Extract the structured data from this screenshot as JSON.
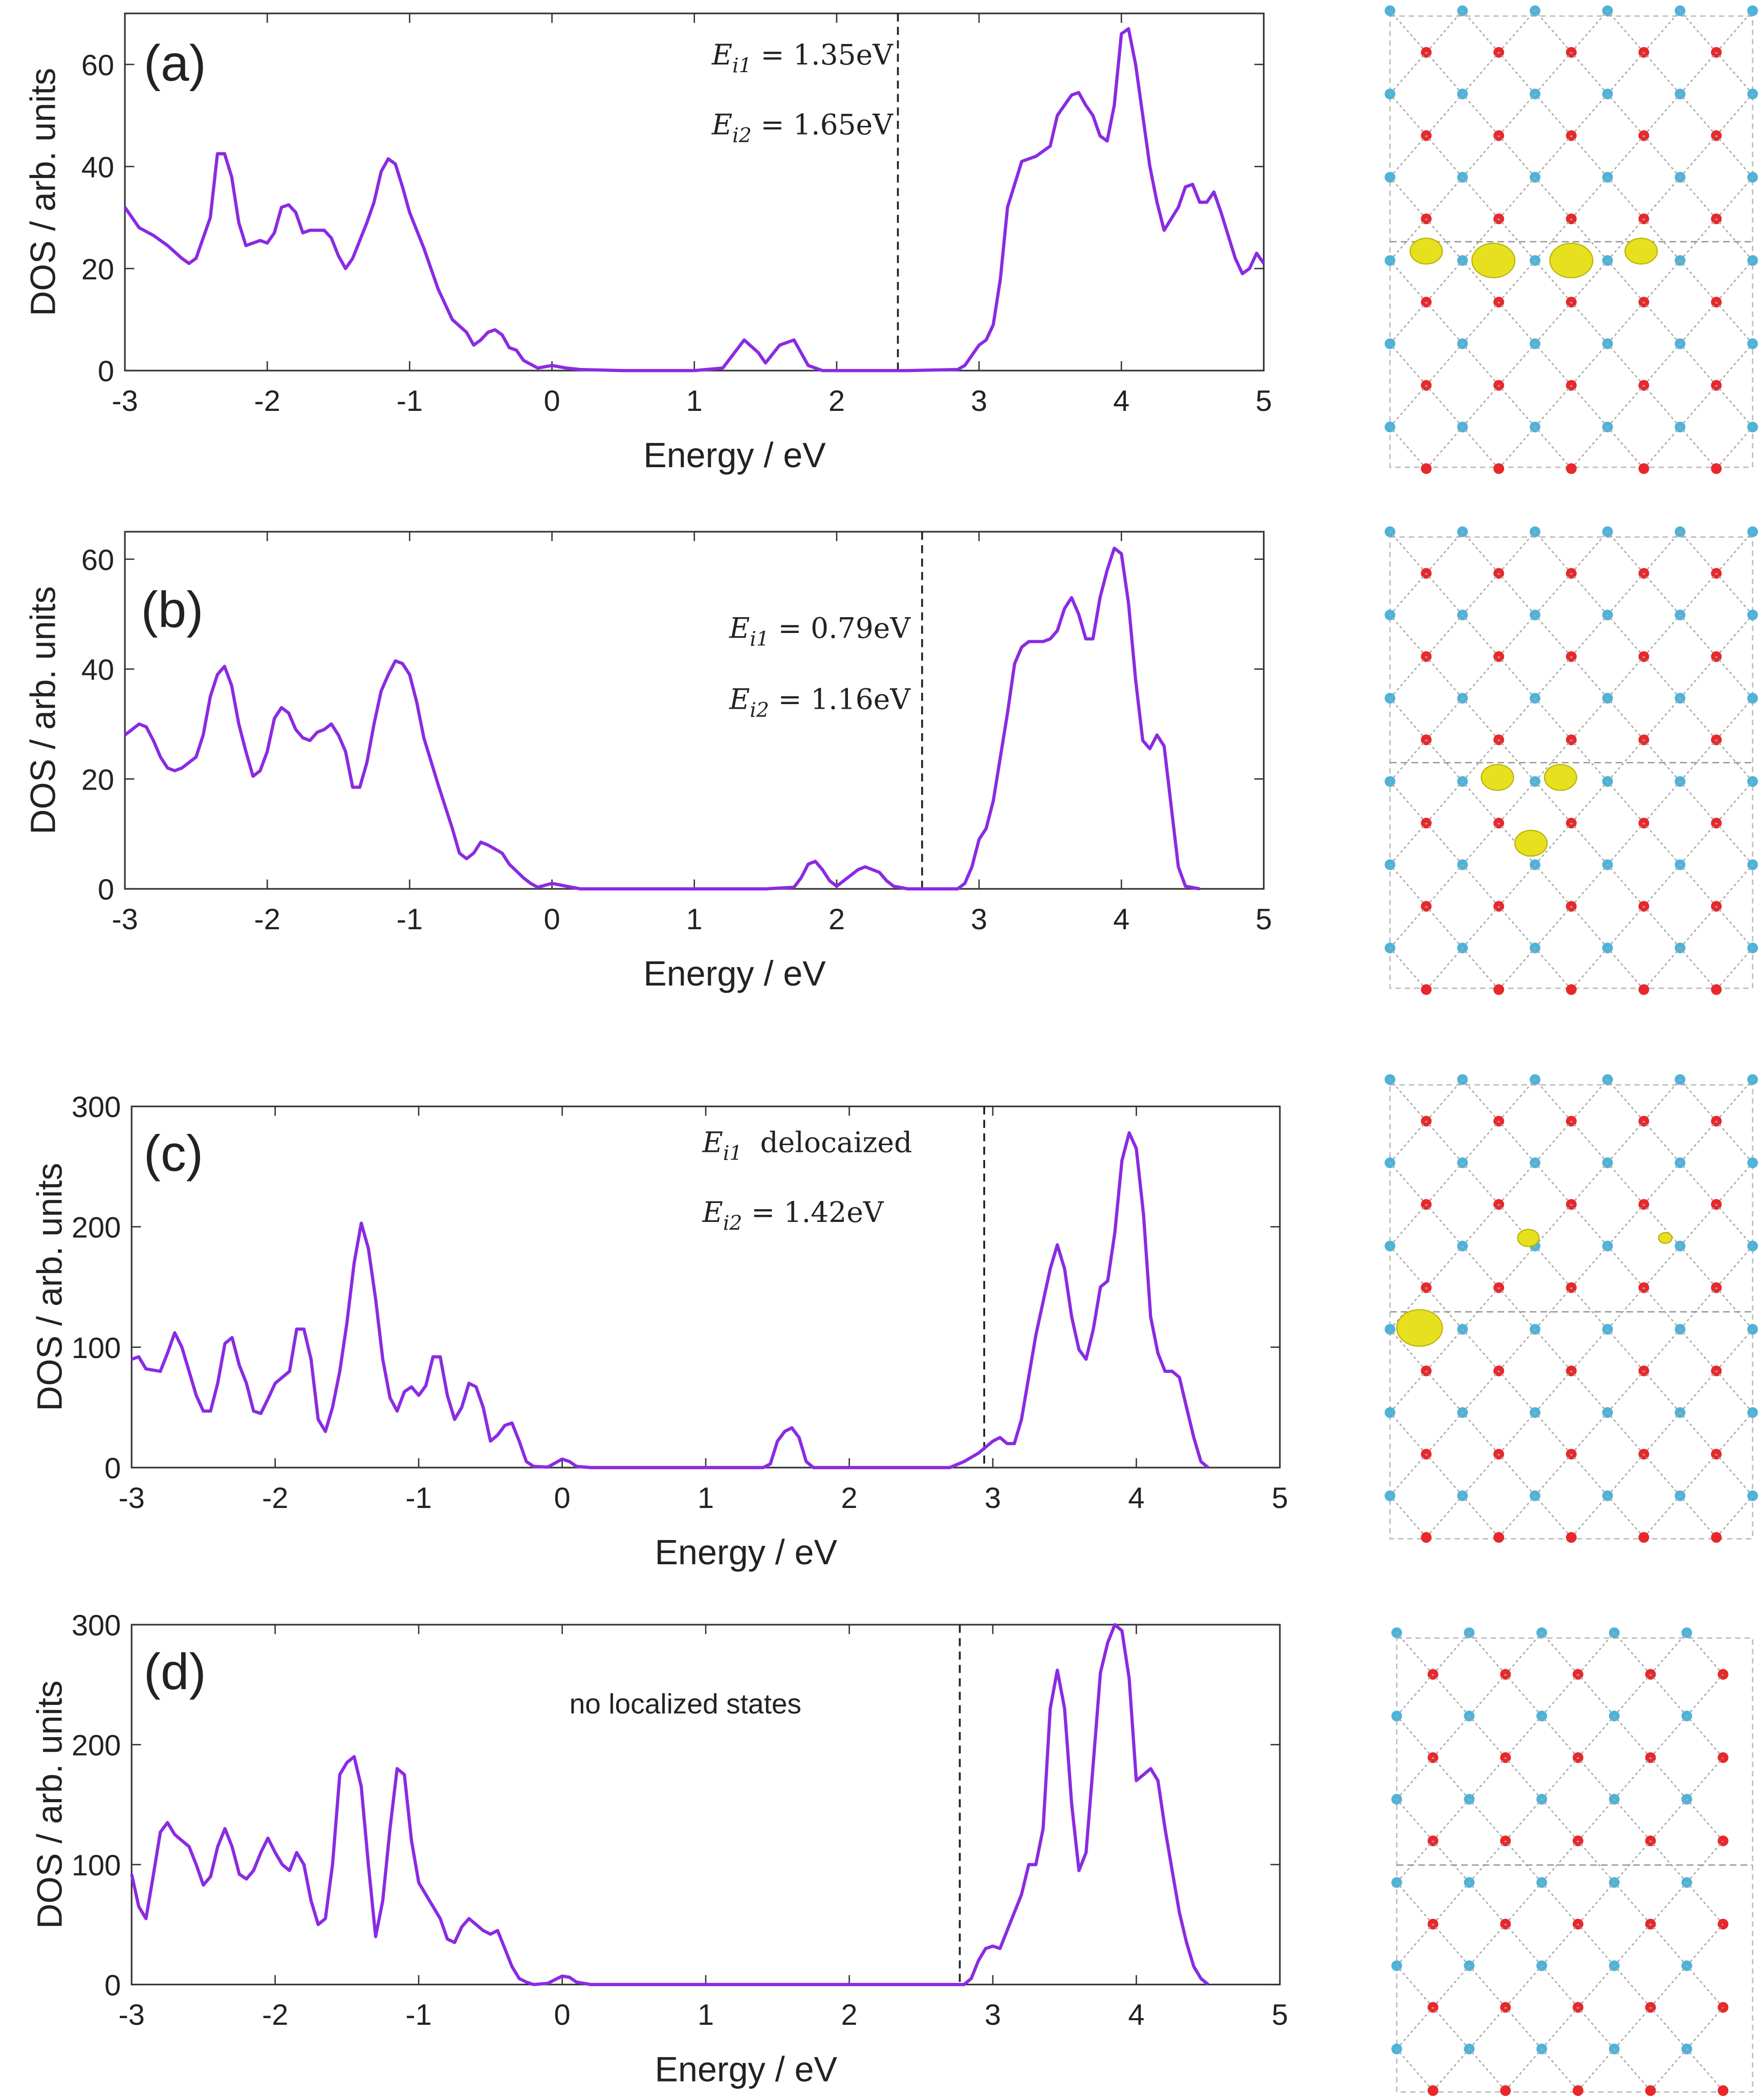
{
  "chart_data": [
    {
      "type": "line",
      "panel_label": "(a)",
      "x_label": "Energy / eV",
      "y_label": "DOS / arb. units",
      "color": "#8a2be2",
      "xlim": [
        -3,
        5
      ],
      "ylim": [
        0,
        70
      ],
      "xticks": [
        -3,
        -2,
        -1,
        0,
        1,
        2,
        3,
        4,
        5
      ],
      "yticks": [
        0,
        20,
        40,
        60
      ],
      "vline": 2.43,
      "annotations": [
        {
          "symbol": "E",
          "subscript": "i1",
          "text": " = 1.35eV"
        },
        {
          "symbol": "E",
          "subscript": "i2",
          "text": " = 1.65eV"
        }
      ],
      "x": [
        -3,
        -2.9,
        -2.8,
        -2.7,
        -2.6,
        -2.55,
        -2.5,
        -2.4,
        -2.35,
        -2.3,
        -2.25,
        -2.2,
        -2.15,
        -2.1,
        -2.05,
        -2,
        -1.95,
        -1.9,
        -1.85,
        -1.8,
        -1.75,
        -1.7,
        -1.6,
        -1.55,
        -1.5,
        -1.45,
        -1.4,
        -1.3,
        -1.25,
        -1.2,
        -1.15,
        -1.1,
        -1.05,
        -1,
        -0.9,
        -0.8,
        -0.7,
        -0.6,
        -0.55,
        -0.5,
        -0.45,
        -0.4,
        -0.35,
        -0.3,
        -0.25,
        -0.2,
        -0.1,
        0,
        0.1,
        0.2,
        0.5,
        1,
        1.2,
        1.35,
        1.45,
        1.5,
        1.6,
        1.7,
        1.8,
        1.9,
        2.5,
        2.85,
        2.9,
        3,
        3.05,
        3.1,
        3.15,
        3.2,
        3.3,
        3.4,
        3.5,
        3.55,
        3.6,
        3.65,
        3.7,
        3.75,
        3.8,
        3.85,
        3.9,
        3.95,
        4,
        4.05,
        4.1,
        4.2,
        4.25,
        4.3,
        4.4,
        4.45,
        4.5,
        4.55,
        4.6,
        4.65,
        4.7,
        4.8,
        4.85,
        4.9,
        4.95,
        5
      ],
      "values": [
        32,
        28,
        26.5,
        24.5,
        22,
        21,
        22,
        30,
        42.5,
        42.5,
        38,
        29,
        24.5,
        25,
        25.5,
        25,
        27,
        32,
        32.5,
        31,
        27,
        27.5,
        27.5,
        26,
        22.5,
        20,
        22,
        29,
        33,
        39,
        41.5,
        40.5,
        36,
        31,
        24,
        16,
        10,
        7.5,
        5,
        6,
        7.5,
        8,
        7,
        4.5,
        4,
        2,
        0.5,
        1,
        0.5,
        0.2,
        0,
        0,
        0.5,
        6,
        3.5,
        1.5,
        5,
        6,
        1,
        0,
        0,
        0.2,
        1,
        5,
        6,
        9,
        18,
        32,
        41,
        42,
        44,
        50,
        52,
        54,
        54.5,
        52,
        50,
        46,
        45,
        52,
        66,
        67,
        60,
        40,
        33,
        27.5,
        32,
        36,
        36.5,
        33,
        33,
        35,
        31,
        22,
        19,
        20,
        23,
        21
      ]
    },
    {
      "type": "line",
      "panel_label": "(b)",
      "x_label": "Energy / eV",
      "y_label": "DOS / arb. units",
      "color": "#8a2be2",
      "xlim": [
        -3,
        5
      ],
      "ylim": [
        0,
        65
      ],
      "xticks": [
        -3,
        -2,
        -1,
        0,
        1,
        2,
        3,
        4,
        5
      ],
      "yticks": [
        0,
        20,
        40,
        60
      ],
      "vline": 2.6,
      "annotations": [
        {
          "symbol": "E",
          "subscript": "i1",
          "text": " = 0.79eV"
        },
        {
          "symbol": "E",
          "subscript": "i2",
          "text": " = 1.16eV"
        }
      ],
      "x": [
        -3,
        -2.9,
        -2.85,
        -2.8,
        -2.75,
        -2.7,
        -2.65,
        -2.6,
        -2.5,
        -2.45,
        -2.4,
        -2.35,
        -2.3,
        -2.25,
        -2.2,
        -2.15,
        -2.1,
        -2.05,
        -2,
        -1.95,
        -1.9,
        -1.85,
        -1.8,
        -1.75,
        -1.7,
        -1.65,
        -1.6,
        -1.55,
        -1.5,
        -1.45,
        -1.4,
        -1.35,
        -1.3,
        -1.25,
        -1.2,
        -1.15,
        -1.1,
        -1.05,
        -1,
        -0.95,
        -0.9,
        -0.8,
        -0.7,
        -0.65,
        -0.6,
        -0.55,
        -0.5,
        -0.45,
        -0.35,
        -0.3,
        -0.2,
        -0.15,
        -0.1,
        0,
        0.1,
        0.2,
        1.5,
        1.7,
        1.75,
        1.8,
        1.85,
        1.9,
        1.95,
        2,
        2.05,
        2.15,
        2.2,
        2.3,
        2.35,
        2.4,
        2.5,
        2.85,
        2.9,
        2.95,
        3,
        3.05,
        3.1,
        3.2,
        3.25,
        3.3,
        3.35,
        3.45,
        3.5,
        3.55,
        3.6,
        3.65,
        3.7,
        3.75,
        3.8,
        3.85,
        3.9,
        3.95,
        4,
        4.05,
        4.1,
        4.15,
        4.2,
        4.25,
        4.3,
        4.35,
        4.4,
        4.45,
        4.55
      ],
      "values": [
        28,
        30,
        29.5,
        27,
        24,
        22,
        21.5,
        22,
        24,
        28,
        35,
        39,
        40.5,
        37,
        30,
        25,
        20.5,
        21.5,
        25,
        31,
        33,
        32,
        29,
        27.5,
        27,
        28.5,
        29,
        30,
        28,
        25,
        18.5,
        18.5,
        23,
        30,
        36,
        39,
        41.5,
        41,
        39,
        34,
        27.5,
        19,
        11,
        6.5,
        5.5,
        6.5,
        8.5,
        8,
        6.5,
        4.5,
        2,
        1,
        0.3,
        1,
        0.5,
        0,
        0,
        0.3,
        2,
        4.5,
        5,
        3.5,
        1.5,
        0.5,
        1.5,
        3.5,
        4,
        3,
        1.5,
        0.5,
        0,
        0,
        1,
        4,
        9,
        11,
        16,
        32,
        41,
        44,
        45,
        45,
        45.5,
        47,
        51,
        53,
        50,
        45.5,
        45.5,
        53,
        58,
        62,
        61,
        52,
        38,
        27,
        25.5,
        28,
        26,
        15,
        4,
        0.5,
        0
      ]
    },
    {
      "type": "line",
      "panel_label": "(c)",
      "x_label": "Energy / eV",
      "y_label": "DOS / arb. units",
      "color": "#8a2be2",
      "xlim": [
        -3,
        5
      ],
      "ylim": [
        0,
        300
      ],
      "xticks": [
        -3,
        -2,
        -1,
        0,
        1,
        2,
        3,
        4,
        5
      ],
      "yticks": [
        0,
        100,
        200,
        300
      ],
      "vline": 2.94,
      "annotations": [
        {
          "symbol": "E",
          "subscript": "i1",
          "text": "  delocaized"
        },
        {
          "symbol": "E",
          "subscript": "i2",
          "text": " = 1.42eV"
        }
      ],
      "x": [
        -3,
        -2.95,
        -2.9,
        -2.8,
        -2.75,
        -2.7,
        -2.65,
        -2.6,
        -2.55,
        -2.5,
        -2.45,
        -2.4,
        -2.35,
        -2.3,
        -2.25,
        -2.2,
        -2.15,
        -2.1,
        -2.05,
        -2,
        -1.95,
        -1.9,
        -1.85,
        -1.8,
        -1.75,
        -1.7,
        -1.65,
        -1.6,
        -1.55,
        -1.5,
        -1.45,
        -1.4,
        -1.35,
        -1.3,
        -1.25,
        -1.2,
        -1.15,
        -1.1,
        -1.05,
        -1,
        -0.95,
        -0.9,
        -0.85,
        -0.8,
        -0.75,
        -0.7,
        -0.65,
        -0.6,
        -0.55,
        -0.5,
        -0.45,
        -0.4,
        -0.35,
        -0.3,
        -0.25,
        -0.2,
        -0.1,
        0,
        0.05,
        0.1,
        0.2,
        1.4,
        1.45,
        1.5,
        1.55,
        1.6,
        1.65,
        1.7,
        1.75,
        2.7,
        2.8,
        2.9,
        3,
        3.05,
        3.1,
        3.15,
        3.2,
        3.3,
        3.4,
        3.45,
        3.5,
        3.55,
        3.6,
        3.65,
        3.7,
        3.75,
        3.8,
        3.85,
        3.9,
        3.95,
        4,
        4.05,
        4.1,
        4.15,
        4.2,
        4.25,
        4.3,
        4.35,
        4.4,
        4.45,
        4.5
      ],
      "values": [
        90,
        92,
        82,
        80,
        95,
        112,
        100,
        80,
        60,
        47,
        47,
        70,
        103,
        108,
        85,
        70,
        47,
        45,
        57,
        70,
        75,
        80,
        115,
        115,
        90,
        40,
        30,
        50,
        80,
        120,
        170,
        203,
        182,
        140,
        90,
        58,
        47,
        63,
        67,
        60,
        68,
        92,
        92,
        60,
        40,
        50,
        70,
        67,
        50,
        22,
        27,
        35,
        37,
        22,
        5,
        1,
        0.5,
        7,
        5,
        1,
        0,
        0,
        3,
        22,
        30,
        33,
        25,
        5,
        0,
        0,
        5,
        12,
        22,
        25,
        20,
        20,
        40,
        110,
        165,
        185,
        165,
        125,
        98,
        90,
        115,
        150,
        155,
        195,
        255,
        278,
        265,
        210,
        125,
        95,
        80,
        80,
        75,
        50,
        25,
        5,
        0
      ]
    },
    {
      "type": "line",
      "panel_label": "(d)",
      "x_label": "Energy / eV",
      "y_label": "DOS / arb. units",
      "color": "#8a2be2",
      "xlim": [
        -3,
        5
      ],
      "ylim": [
        0,
        300
      ],
      "xticks": [
        -3,
        -2,
        -1,
        0,
        1,
        2,
        3,
        4,
        5
      ],
      "yticks": [
        0,
        100,
        200,
        300
      ],
      "vline": 2.77,
      "annotations": [
        {
          "text": "no localized states"
        }
      ],
      "x": [
        -3,
        -2.95,
        -2.9,
        -2.85,
        -2.8,
        -2.75,
        -2.7,
        -2.6,
        -2.55,
        -2.5,
        -2.45,
        -2.4,
        -2.35,
        -2.3,
        -2.25,
        -2.2,
        -2.15,
        -2.1,
        -2.05,
        -2,
        -1.95,
        -1.9,
        -1.85,
        -1.8,
        -1.75,
        -1.7,
        -1.65,
        -1.6,
        -1.55,
        -1.5,
        -1.45,
        -1.4,
        -1.35,
        -1.3,
        -1.25,
        -1.2,
        -1.15,
        -1.1,
        -1.05,
        -1,
        -0.95,
        -0.9,
        -0.85,
        -0.8,
        -0.75,
        -0.7,
        -0.65,
        -0.6,
        -0.55,
        -0.5,
        -0.45,
        -0.4,
        -0.35,
        -0.3,
        -0.25,
        -0.2,
        -0.1,
        0,
        0.05,
        0.1,
        0.2,
        2.8,
        2.85,
        2.9,
        2.95,
        3,
        3.05,
        3.1,
        3.2,
        3.25,
        3.3,
        3.35,
        3.4,
        3.45,
        3.5,
        3.55,
        3.6,
        3.65,
        3.7,
        3.75,
        3.8,
        3.85,
        3.9,
        3.95,
        4,
        4.05,
        4.1,
        4.15,
        4.2,
        4.25,
        4.3,
        4.35,
        4.4,
        4.45,
        4.5
      ],
      "values": [
        92,
        65,
        55,
        90,
        127,
        135,
        125,
        115,
        100,
        83,
        90,
        115,
        130,
        115,
        92,
        88,
        95,
        110,
        122,
        110,
        100,
        95,
        110,
        100,
        70,
        50,
        55,
        100,
        175,
        185,
        190,
        165,
        100,
        40,
        70,
        130,
        180,
        175,
        120,
        85,
        75,
        65,
        55,
        38,
        35,
        48,
        55,
        50,
        45,
        42,
        45,
        30,
        15,
        5,
        2,
        0,
        1,
        7,
        6,
        2,
        0,
        0,
        5,
        20,
        30,
        32,
        30,
        45,
        75,
        100,
        100,
        130,
        230,
        262,
        230,
        150,
        95,
        110,
        185,
        260,
        285,
        300,
        295,
        255,
        170,
        175,
        180,
        170,
        130,
        95,
        60,
        35,
        15,
        5,
        0
      ]
    }
  ]
}
